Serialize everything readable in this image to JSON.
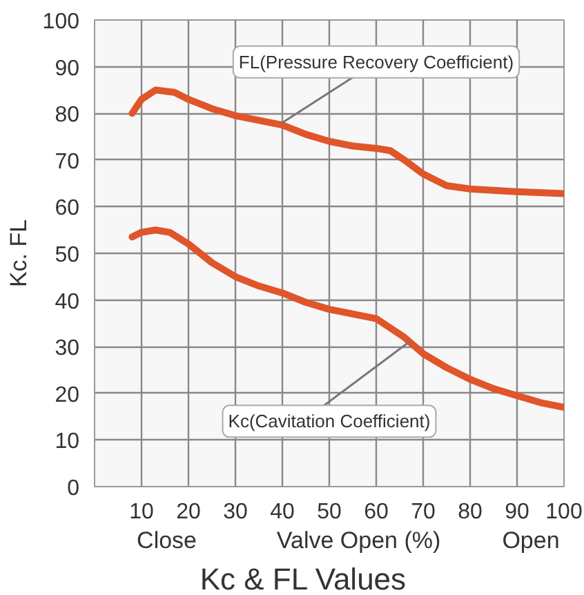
{
  "chart_data": {
    "type": "line",
    "title": "Kc & FL Values",
    "xlabel": "Valve Open (%)",
    "ylabel": "Kc. FL",
    "annotations": [
      {
        "text": "FL(Pressure Recovery Coefficient)",
        "x": 40,
        "y": 78
      },
      {
        "text": "Kc(Cavitation Coefficient)",
        "x": 67,
        "y": 31
      },
      "Close",
      "Open"
    ],
    "series": [
      {
        "color": "#e0552a",
        "x": [
          8,
          10,
          13,
          17,
          20,
          25,
          30,
          35,
          40,
          45,
          50,
          55,
          60,
          63,
          66,
          70,
          75,
          80,
          90,
          100
        ],
        "values": [
          80,
          83,
          85,
          84.5,
          83,
          81,
          79.5,
          78.5,
          77.5,
          75.5,
          74,
          73,
          72.5,
          72,
          70,
          67,
          64.5,
          63.8,
          63.2,
          62.8
        ]
      },
      {
        "color": "#e0552a",
        "x": [
          8,
          10,
          13,
          16,
          20,
          25,
          30,
          35,
          40,
          45,
          50,
          55,
          60,
          63,
          66,
          70,
          75,
          80,
          85,
          90,
          95,
          100
        ],
        "values": [
          53.5,
          54.5,
          55,
          54.5,
          52,
          48,
          45,
          43,
          41.5,
          39.5,
          38,
          37,
          36,
          34,
          32,
          28.5,
          25.5,
          23,
          21,
          19.5,
          18,
          17
        ]
      }
    ],
    "xlim": [
      0,
      100
    ],
    "ylim": [
      0,
      100
    ],
    "xticks": [
      10,
      20,
      30,
      40,
      50,
      60,
      70,
      80,
      90,
      100
    ],
    "yticks": [
      0,
      10,
      20,
      30,
      40,
      50,
      60,
      70,
      80,
      90,
      100
    ],
    "grid": true,
    "line_style": "solid"
  }
}
